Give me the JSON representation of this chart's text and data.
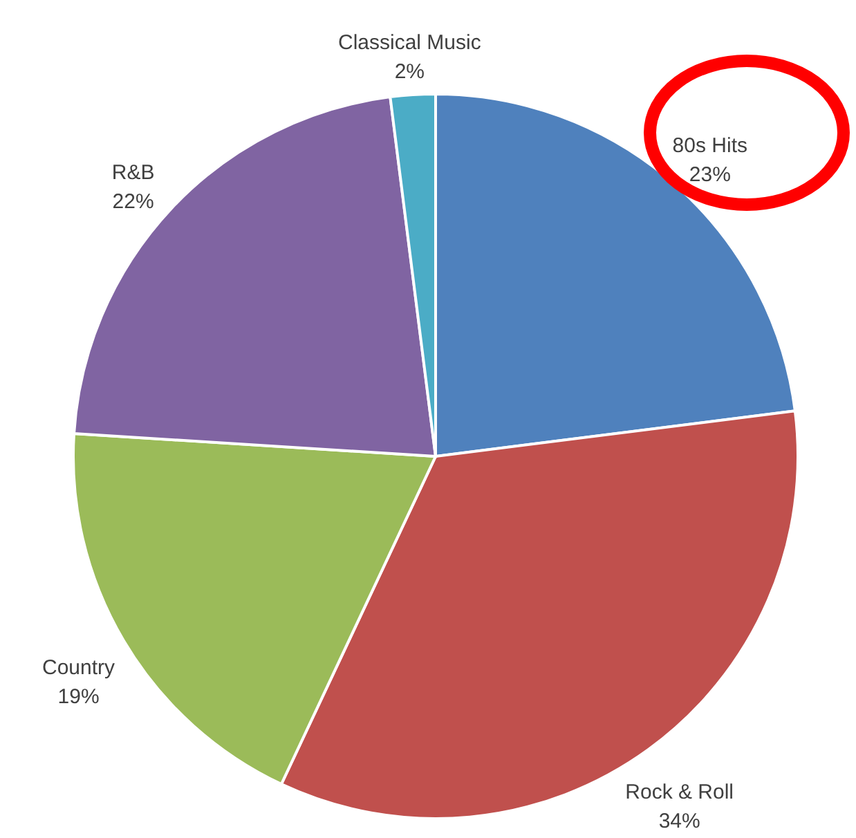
{
  "chart_data": {
    "type": "pie",
    "categories": [
      "80s Hits",
      "Rock & Roll",
      "Country",
      "R&B",
      "Classical Music"
    ],
    "values": [
      23,
      34,
      19,
      22,
      2
    ],
    "value_labels": [
      "23%",
      "34%",
      "19%",
      "22%",
      "2%"
    ],
    "colors": [
      "#4f81bd",
      "#c0504d",
      "#9bbb59",
      "#8064a2",
      "#4bacc6"
    ]
  }
}
